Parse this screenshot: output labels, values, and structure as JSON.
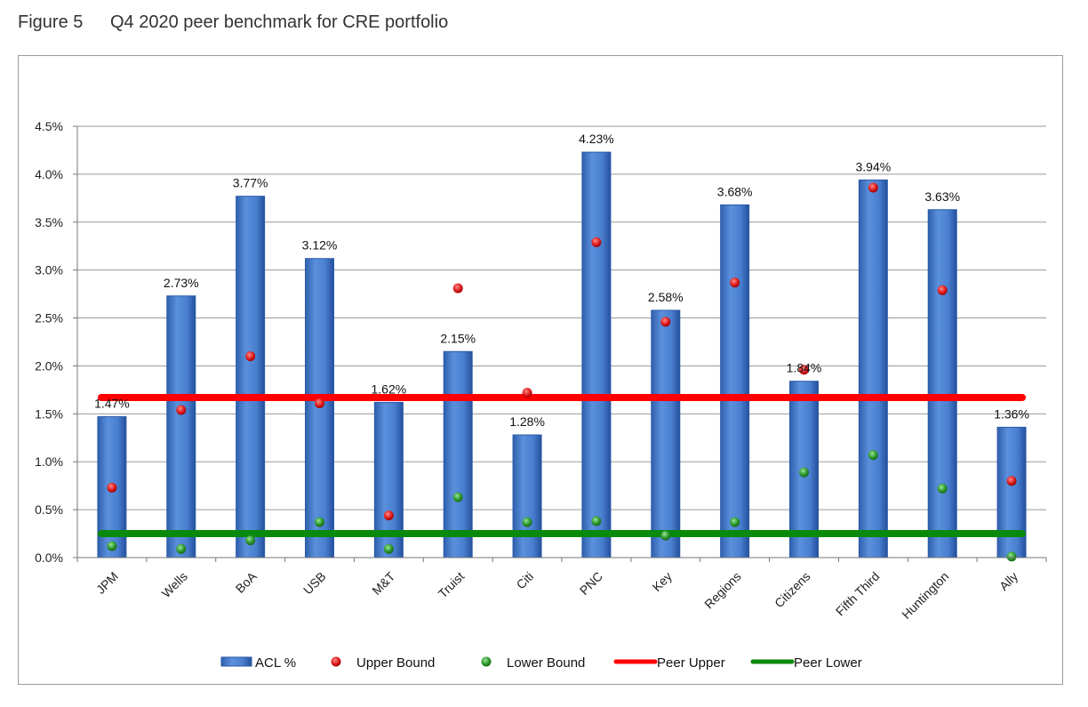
{
  "figure": {
    "number": "Figure 5",
    "title": "Q4 2020 peer benchmark for CRE portfolio"
  },
  "chart_data": {
    "type": "bar",
    "title": "",
    "xlabel": "",
    "ylabel": "",
    "ylim": [
      0,
      4.5
    ],
    "yticks": [
      "0.0%",
      "0.5%",
      "1.0%",
      "1.5%",
      "2.0%",
      "2.5%",
      "3.0%",
      "3.5%",
      "4.0%",
      "4.5%"
    ],
    "grid": true,
    "legend_position": "bottom",
    "categories": [
      "JPM",
      "Wells",
      "BoA",
      "USB",
      "M&T",
      "Truist",
      "Citi",
      "PNC",
      "Key",
      "Regions",
      "Citizens",
      "Fifth Third",
      "Huntington",
      "Ally"
    ],
    "series": [
      {
        "name": "ACL %",
        "kind": "bar",
        "color": "#4a7fd0",
        "values": [
          1.47,
          2.73,
          3.77,
          3.12,
          1.62,
          2.15,
          1.28,
          4.23,
          2.58,
          3.68,
          1.84,
          3.94,
          3.63,
          1.36
        ],
        "labels": [
          "1.47%",
          "2.73%",
          "3.77%",
          "3.12%",
          "1.62%",
          "2.15%",
          "1.28%",
          "4.23%",
          "2.58%",
          "3.68%",
          "1.84%",
          "3.94%",
          "3.63%",
          "1.36%"
        ]
      },
      {
        "name": "Upper Bound",
        "kind": "point",
        "color": "#e02020",
        "values": [
          0.73,
          1.54,
          2.1,
          1.61,
          0.44,
          2.81,
          1.72,
          3.29,
          2.46,
          2.87,
          1.96,
          3.86,
          2.79,
          0.8
        ]
      },
      {
        "name": "Lower Bound",
        "kind": "point",
        "color": "#2e9a2e",
        "values": [
          0.12,
          0.09,
          0.18,
          0.37,
          0.09,
          0.63,
          0.37,
          0.38,
          0.23,
          0.37,
          0.89,
          1.07,
          0.72,
          0.01
        ]
      },
      {
        "name": "Peer Upper",
        "kind": "hline",
        "color": "#ff0000",
        "value": 1.67
      },
      {
        "name": "Peer Lower",
        "kind": "hline",
        "color": "#0a8a0a",
        "value": 0.25
      }
    ]
  }
}
